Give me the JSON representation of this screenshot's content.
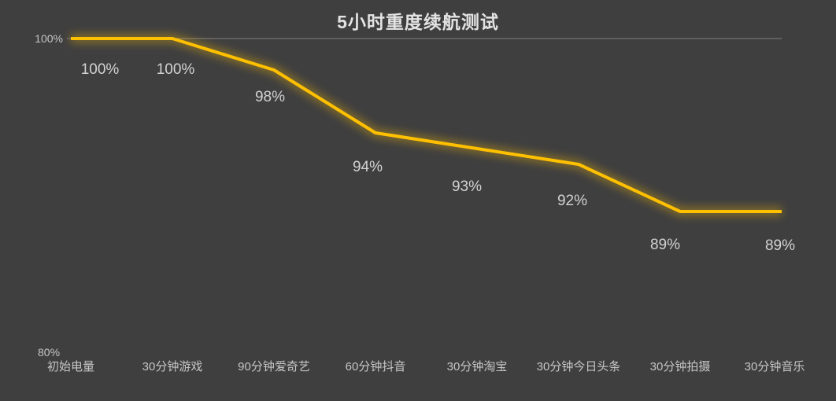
{
  "chart_data": {
    "type": "line",
    "title": "5小时重度续航测试",
    "categories": [
      "初始电量",
      "30分钟游戏",
      "90分钟爱奇艺",
      "60分钟抖音",
      "30分钟淘宝",
      "30分钟今日头条",
      "30分钟拍摄",
      "30分钟音乐"
    ],
    "values": [
      100,
      100,
      98,
      94,
      93,
      92,
      89,
      89
    ],
    "data_labels": [
      "100%",
      "100%",
      "98%",
      "94%",
      "93%",
      "92%",
      "89%",
      "89%"
    ],
    "unit": "%",
    "xlabel": "",
    "ylabel": "",
    "ylim": [
      80,
      100
    ],
    "y_ticks": [
      "100%",
      "80%"
    ],
    "legend": "none",
    "grid": "single horizontal gridline at 100% level only",
    "line_style": "solid with soft glow"
  },
  "colors": {
    "background": "#3F3F3F",
    "line": "#FFC000",
    "glow": "#FFC000",
    "gridline": "#747474",
    "title_text": "#E3E3E3",
    "data_label_text": "#D2D2D2",
    "axis_label_text": "#C6C6C6"
  }
}
